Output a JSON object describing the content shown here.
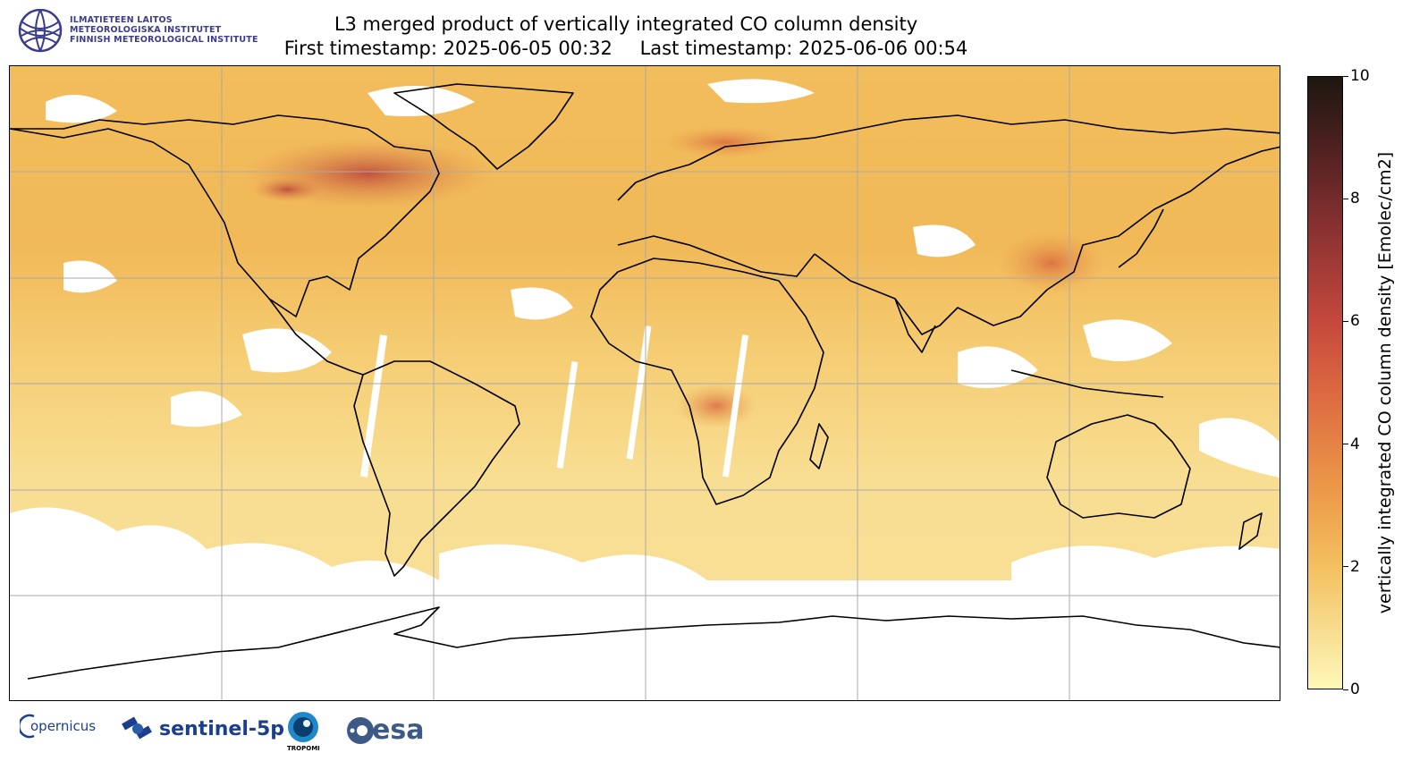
{
  "title": {
    "line1": "L3 merged product of vertically integrated CO column density",
    "first_timestamp": "First timestamp: 2025-06-05 00:32",
    "last_timestamp": "Last timestamp: 2025-06-06 00:54"
  },
  "institute": {
    "line1": "ILMATIETEEN LAITOS",
    "line2": "METEOROLOGISKA INSTITUTET",
    "line3": "FINNISH METEOROLOGICAL INSTITUTE",
    "color": "#3b3c8c"
  },
  "colorbar": {
    "label": "vertically integrated CO column density [Emolec/cm2]",
    "min": 0,
    "max": 10,
    "ticks": [
      "0",
      "2",
      "4",
      "6",
      "8",
      "10"
    ],
    "colormap": [
      "#fff8b8",
      "#f3c05f",
      "#dd6a41",
      "#8e3332",
      "#1c1710"
    ]
  },
  "map": {
    "projection": "plate-carree",
    "grid": "on",
    "lon_range": [
      -180,
      180
    ],
    "lat_range": [
      -90,
      90
    ]
  },
  "logos": {
    "copernicus": "opernicus",
    "sentinel": "sentinel-5p",
    "tropomi": "TROPOMI",
    "esa": "esa"
  }
}
